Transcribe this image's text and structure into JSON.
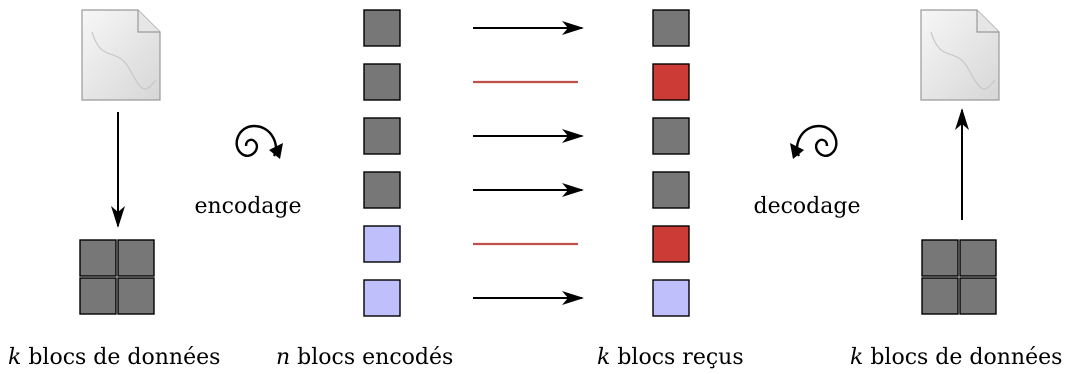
{
  "colors": {
    "data_block": "#777777",
    "lost_block": "#cc3b35",
    "parity_block": "#bfbffb",
    "lost_line": "#c0504d",
    "arrow": "#000000"
  },
  "labels": {
    "encode_verb": "encodage",
    "decode_verb": "decodage",
    "source": {
      "var": "k",
      "text": " blocs de données"
    },
    "encoded": {
      "var": "n",
      "text": " blocs encodés"
    },
    "received": {
      "var": "k",
      "text": " blocs reçus"
    },
    "output": {
      "var": "k",
      "text": " blocs de données"
    }
  },
  "icons": {
    "source_file": "document-icon",
    "output_file": "document-icon",
    "encode": "spiral-clockwise-icon",
    "decode": "spiral-counterclockwise-icon"
  },
  "source_grid": [
    "data",
    "data",
    "data",
    "data"
  ],
  "encoded_blocks": [
    "data",
    "data",
    "data",
    "data",
    "parity",
    "parity"
  ],
  "transmission": [
    "delivered",
    "lost",
    "delivered",
    "delivered",
    "lost",
    "delivered"
  ],
  "received_blocks": [
    "data",
    "lost",
    "data",
    "data",
    "lost",
    "parity"
  ],
  "output_grid": [
    "data",
    "data",
    "data",
    "data"
  ]
}
